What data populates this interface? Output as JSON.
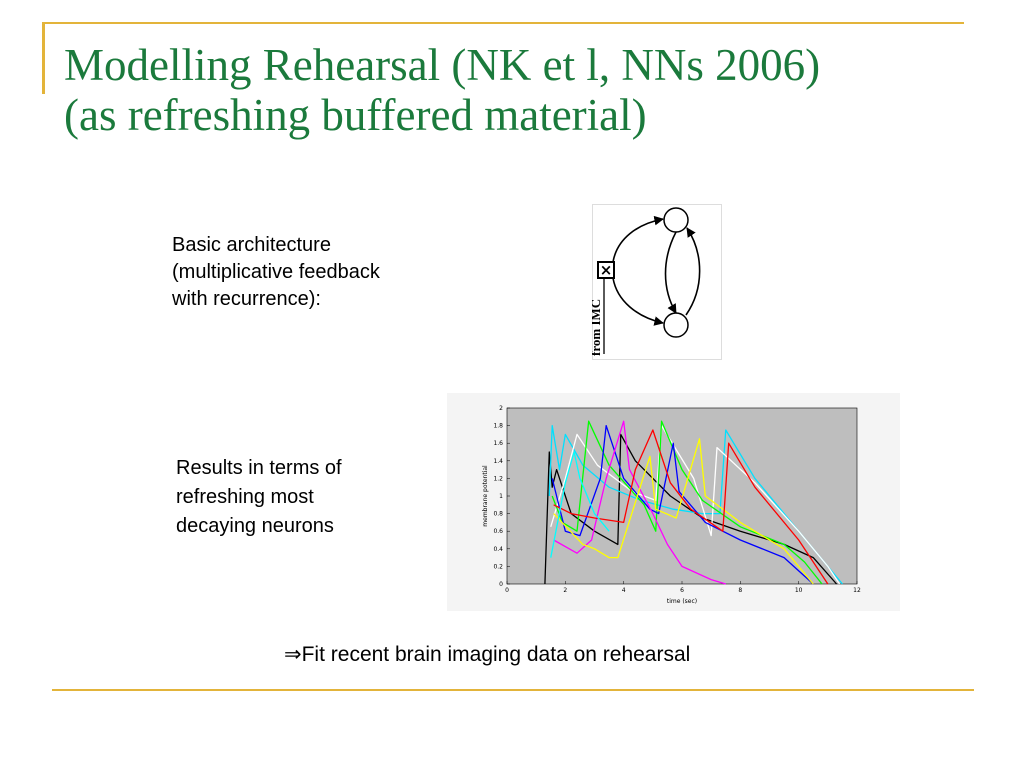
{
  "slide": {
    "title_line1": "Modelling Rehearsal (NK et l, NNs 2006)",
    "title_line2": "(as refreshing buffered material)",
    "arch_text": [
      "Basic architecture",
      "(multiplicative feedback",
      "with recurrence):"
    ],
    "results_text": [
      "Results in terms of",
      "refreshing most",
      "decaying neurons"
    ],
    "conclusion_arrow": "⇒",
    "conclusion": "Fit recent brain imaging data on rehearsal",
    "accent_color": "#e3b43a",
    "title_color": "#1b7a3c"
  },
  "diagram": {
    "side_label": "from IMC",
    "gate_symbol": "×"
  },
  "chart_data": {
    "type": "line",
    "xlabel": "time (sec)",
    "ylabel": "membrane potential",
    "xlim": [
      0,
      12
    ],
    "ylim": [
      0,
      2
    ],
    "xticks": [
      "0",
      "2",
      "4",
      "6",
      "8",
      "10",
      "12"
    ],
    "yticks": [
      "0",
      "0.2",
      "0.4",
      "0.6",
      "0.8",
      "1",
      "1.2",
      "1.4",
      "1.6",
      "1.8",
      "2"
    ],
    "series": [
      {
        "color": "#000000",
        "x": [
          1.3,
          1.45,
          1.55,
          1.7,
          2.2,
          3.0,
          3.8,
          3.9,
          4.4,
          5.6,
          6.7,
          8.0,
          9.5,
          10.5,
          11.3
        ],
        "y": [
          0,
          1.5,
          1.1,
          1.3,
          0.8,
          0.6,
          0.45,
          1.7,
          1.4,
          1.0,
          0.75,
          0.6,
          0.45,
          0.3,
          0
        ]
      },
      {
        "color": "#00e0ff",
        "x": [
          1.45,
          1.55,
          1.8,
          2.0,
          2.6,
          3.5,
          4.6,
          5.7,
          6.7,
          7.3,
          7.5,
          8.5,
          10.0,
          11.0,
          11.5
        ],
        "y": [
          1.0,
          1.8,
          1.3,
          1.7,
          1.35,
          1.1,
          0.95,
          0.85,
          0.8,
          0.8,
          1.75,
          1.2,
          0.6,
          0.2,
          0
        ]
      },
      {
        "color": "#ffffff",
        "x": [
          1.5,
          2.0,
          2.4,
          3.1,
          4.3,
          5.1,
          5.3,
          6.4,
          7.0,
          7.2,
          8.5,
          10.0,
          11.0,
          11.4
        ],
        "y": [
          0.65,
          1.2,
          1.7,
          1.35,
          1.05,
          0.95,
          1.8,
          1.2,
          0.55,
          1.55,
          1.15,
          0.6,
          0.2,
          0
        ]
      },
      {
        "color": "#00ff00",
        "x": [
          1.55,
          1.9,
          2.4,
          2.8,
          3.5,
          4.7,
          5.1,
          5.3,
          6.0,
          6.7,
          8.0,
          9.5,
          10.2,
          10.8
        ],
        "y": [
          1.0,
          0.7,
          0.6,
          1.85,
          1.35,
          0.9,
          0.6,
          1.85,
          1.3,
          0.95,
          0.65,
          0.45,
          0.25,
          0
        ]
      },
      {
        "color": "#0000ff",
        "x": [
          1.55,
          2.0,
          2.5,
          3.2,
          3.4,
          4.0,
          4.9,
          5.2,
          5.7,
          5.9,
          6.8,
          8.0,
          9.5,
          10.5
        ],
        "y": [
          1.2,
          0.6,
          0.55,
          1.2,
          1.8,
          1.2,
          0.85,
          0.8,
          1.6,
          1.05,
          0.7,
          0.5,
          0.3,
          0
        ]
      },
      {
        "color": "#ff00ff",
        "x": [
          1.6,
          2.4,
          2.9,
          3.4,
          4.0,
          4.2,
          5.0,
          5.5,
          6.0,
          7.0,
          7.5
        ],
        "y": [
          0.5,
          0.35,
          0.5,
          1.2,
          1.85,
          1.3,
          0.8,
          0.45,
          0.2,
          0.05,
          0
        ]
      },
      {
        "color": "#ffff00",
        "x": [
          1.6,
          2.6,
          3.0,
          3.5,
          3.8,
          4.9,
          5.1,
          5.8,
          6.6,
          6.8,
          8.0,
          9.5,
          10.5
        ],
        "y": [
          0.8,
          0.45,
          0.4,
          0.3,
          0.3,
          1.45,
          0.85,
          0.75,
          1.65,
          1.0,
          0.7,
          0.4,
          0
        ]
      },
      {
        "color": "#ff0000",
        "x": [
          1.6,
          2.2,
          3.0,
          4.0,
          4.4,
          5.0,
          5.6,
          6.3,
          7.4,
          7.6,
          8.5,
          10.0,
          11.0
        ],
        "y": [
          0.9,
          0.8,
          0.75,
          0.7,
          1.3,
          1.75,
          1.15,
          0.85,
          0.6,
          1.6,
          1.1,
          0.5,
          0
        ]
      },
      {
        "color": "#00ffff",
        "x": [
          1.5,
          2.0,
          2.3,
          2.5,
          3.0,
          3.5
        ],
        "y": [
          0.3,
          1.15,
          1.5,
          1.2,
          0.8,
          0.6
        ]
      }
    ]
  }
}
